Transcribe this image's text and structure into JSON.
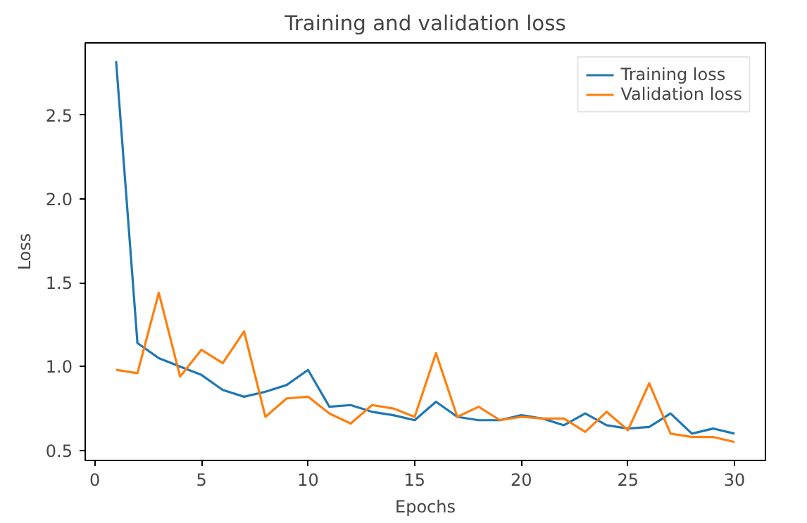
{
  "chart_data": {
    "type": "line",
    "title": "Training and validation loss",
    "xlabel": "Epochs",
    "ylabel": "Loss",
    "x": [
      1,
      2,
      3,
      4,
      5,
      6,
      7,
      8,
      9,
      10,
      11,
      12,
      13,
      14,
      15,
      16,
      17,
      18,
      19,
      20,
      21,
      22,
      23,
      24,
      25,
      26,
      27,
      28,
      29,
      30
    ],
    "series": [
      {
        "name": "Training loss",
        "color": "#1f77b4",
        "values": [
          2.82,
          1.14,
          1.05,
          1.0,
          0.95,
          0.86,
          0.82,
          0.85,
          0.89,
          0.98,
          0.76,
          0.77,
          0.73,
          0.71,
          0.68,
          0.79,
          0.7,
          0.68,
          0.68,
          0.71,
          0.69,
          0.65,
          0.72,
          0.65,
          0.63,
          0.64,
          0.72,
          0.6,
          0.63,
          0.6
        ]
      },
      {
        "name": "Validation loss",
        "color": "#ff7f0e",
        "values": [
          0.98,
          0.96,
          1.44,
          0.94,
          1.1,
          1.02,
          1.21,
          0.7,
          0.81,
          0.82,
          0.72,
          0.66,
          0.77,
          0.75,
          0.7,
          1.08,
          0.7,
          0.76,
          0.68,
          0.7,
          0.69,
          0.69,
          0.61,
          0.73,
          0.62,
          0.9,
          0.6,
          0.58,
          0.58,
          0.55
        ]
      }
    ],
    "xlim": [
      -0.45,
      31.45
    ],
    "ylim": [
      0.44,
      2.93
    ],
    "xticks": [
      0,
      5,
      10,
      15,
      20,
      25,
      30
    ],
    "yticks": [
      0.5,
      {
        "value": 1,
        "label": "1.0"
      },
      1.5,
      {
        "value": 2,
        "label": "2.0"
      },
      2.5
    ],
    "grid": false,
    "legend": "top right",
    "line_style": "solid"
  }
}
